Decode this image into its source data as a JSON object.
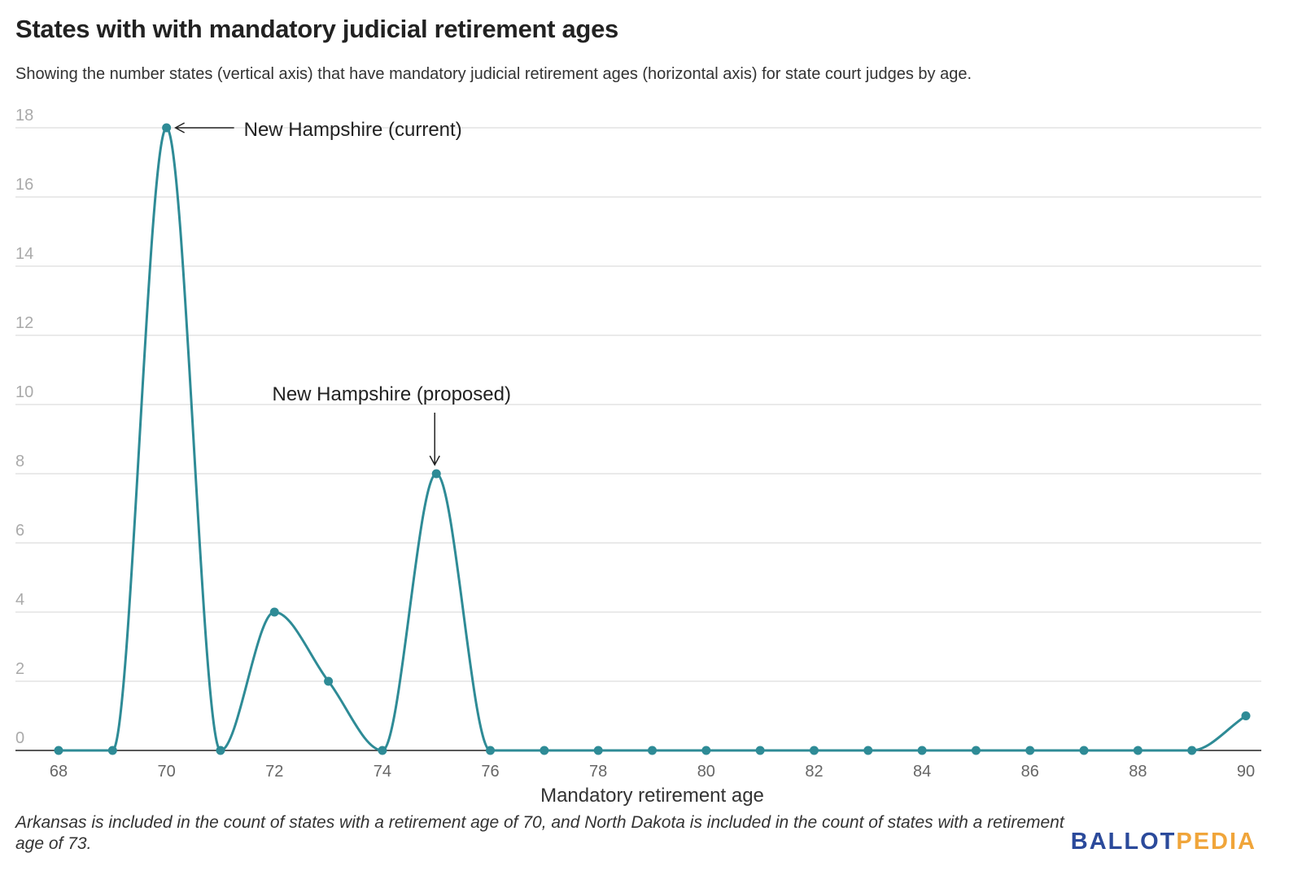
{
  "chart_data": {
    "type": "line",
    "title": "States with with mandatory judicial retirement ages",
    "subtitle": "Showing the number states (vertical axis) that have mandatory judicial retirement ages (horizontal axis) for state court judges by age.",
    "xlabel": "Mandatory retirement age",
    "ylabel": "",
    "x": [
      68,
      69,
      70,
      71,
      72,
      73,
      74,
      75,
      76,
      77,
      78,
      79,
      80,
      81,
      82,
      83,
      84,
      85,
      86,
      87,
      88,
      89,
      90
    ],
    "values": [
      0,
      0,
      18,
      0,
      4,
      2,
      0,
      8,
      0,
      0,
      0,
      0,
      0,
      0,
      0,
      0,
      0,
      0,
      0,
      0,
      0,
      0,
      1
    ],
    "xlim": [
      68,
      90
    ],
    "ylim": [
      0,
      18
    ],
    "xticks": [
      68,
      70,
      72,
      74,
      76,
      78,
      80,
      82,
      84,
      86,
      88,
      90
    ],
    "yticks": [
      0,
      2,
      4,
      6,
      8,
      10,
      12,
      14,
      16,
      18
    ],
    "grid": true,
    "line_color": "#2e8b96",
    "annotations": [
      {
        "text": "New Hampshire (current)",
        "x": 70,
        "y": 18
      },
      {
        "text": "New Hampshire (proposed)",
        "x": 75,
        "y": 8
      }
    ],
    "note": "Arkansas is included in the count of states with a retirement age of 70, and North Dakota is included in the count of states with a retirement age of 73."
  },
  "logo": {
    "part1": "BALLOT",
    "part2": "PEDIA"
  }
}
